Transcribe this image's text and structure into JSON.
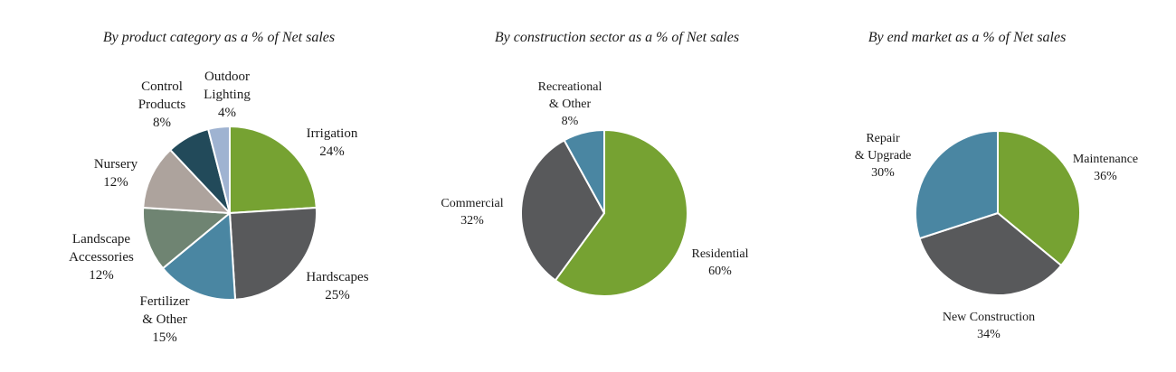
{
  "chart_data": [
    {
      "type": "pie",
      "title": "By product category as a % of Net sales",
      "slices": [
        {
          "lines": [
            "Irrigation"
          ],
          "pct_label": "24%",
          "value": 24,
          "color": "#76a232"
        },
        {
          "lines": [
            "Hardscapes"
          ],
          "pct_label": "25%",
          "value": 25,
          "color": "#58595b"
        },
        {
          "lines": [
            "Fertilizer",
            "& Other"
          ],
          "pct_label": "15%",
          "value": 15,
          "color": "#4a86a2"
        },
        {
          "lines": [
            "Landscape",
            "Accessories"
          ],
          "pct_label": "12%",
          "value": 12,
          "color": "#6f8472"
        },
        {
          "lines": [
            "Nursery"
          ],
          "pct_label": "12%",
          "value": 12,
          "color": "#ada39d"
        },
        {
          "lines": [
            "Control",
            "Products"
          ],
          "pct_label": "8%",
          "value": 8,
          "color": "#224a5a"
        },
        {
          "lines": [
            "Outdoor",
            "Lighting"
          ],
          "pct_label": "4%",
          "value": 4,
          "color": "#9fb3d1"
        }
      ]
    },
    {
      "type": "pie",
      "title": "By construction sector as a % of Net sales",
      "slices": [
        {
          "lines": [
            "Residential"
          ],
          "pct_label": "60%",
          "value": 60,
          "color": "#76a232"
        },
        {
          "lines": [
            "Commercial"
          ],
          "pct_label": "32%",
          "value": 32,
          "color": "#58595b"
        },
        {
          "lines": [
            "Recreational",
            "& Other"
          ],
          "pct_label": "8%",
          "value": 8,
          "color": "#4a86a2"
        }
      ]
    },
    {
      "type": "pie",
      "title": "By end market as a % of Net sales",
      "slices": [
        {
          "lines": [
            "Maintenance"
          ],
          "pct_label": "36%",
          "value": 36,
          "color": "#76a232"
        },
        {
          "lines": [
            "New Construction"
          ],
          "pct_label": "34%",
          "value": 34,
          "color": "#58595b"
        },
        {
          "lines": [
            "Repair",
            "& Upgrade"
          ],
          "pct_label": "30%",
          "value": 30,
          "color": "#4a86a2"
        }
      ]
    }
  ]
}
